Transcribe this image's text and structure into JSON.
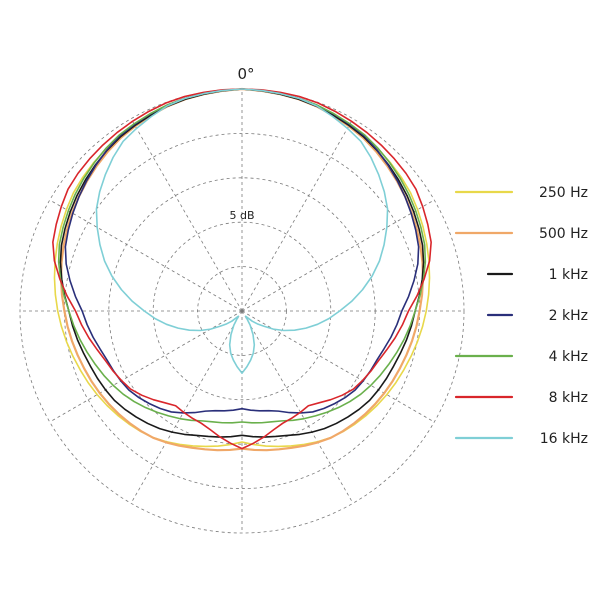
{
  "chart_data": {
    "type": "polar-line",
    "title": "",
    "angle_label": "0°",
    "scale_label": "5 dB",
    "rings": 5,
    "grid": true,
    "legend_position": "right",
    "series": [
      {
        "name": "250 Hz",
        "color": "#e8d84a",
        "r": [
          1.0,
          0.985,
          0.96,
          0.93,
          0.88,
          0.83,
          0.78,
          0.74,
          0.7,
          0.64,
          0.59
        ]
      },
      {
        "name": "500 Hz",
        "color": "#f0a868",
        "r": [
          1.0,
          0.985,
          0.95,
          0.9,
          0.85,
          0.8,
          0.76,
          0.73,
          0.7,
          0.65,
          0.62
        ]
      },
      {
        "name": "1 kHz",
        "color": "#1a1a1a",
        "r": [
          1.0,
          0.985,
          0.955,
          0.91,
          0.86,
          0.78,
          0.73,
          0.7,
          0.65,
          0.59,
          0.56
        ]
      },
      {
        "name": "2 kHz",
        "color": "#2a2f7a",
        "r": [
          1.0,
          0.99,
          0.96,
          0.9,
          0.84,
          0.72,
          0.65,
          0.62,
          0.56,
          0.47,
          0.44
        ]
      },
      {
        "name": "4 kHz",
        "color": "#6ab04c",
        "r": [
          1.0,
          0.99,
          0.965,
          0.92,
          0.87,
          0.78,
          0.71,
          0.65,
          0.58,
          0.52,
          0.5
        ]
      },
      {
        "name": "8 kHz",
        "color": "#d9262b",
        "r": [
          1.0,
          1.0,
          0.98,
          0.96,
          0.9,
          0.75,
          0.66,
          0.61,
          0.52,
          0.54,
          0.62
        ]
      },
      {
        "name": "16 kHz",
        "color": "#7fcfd6",
        "r": [
          1.0,
          0.99,
          0.93,
          0.81,
          0.64,
          0.44,
          0.27,
          0.11,
          0.02,
          0.18,
          0.28
        ]
      }
    ]
  }
}
